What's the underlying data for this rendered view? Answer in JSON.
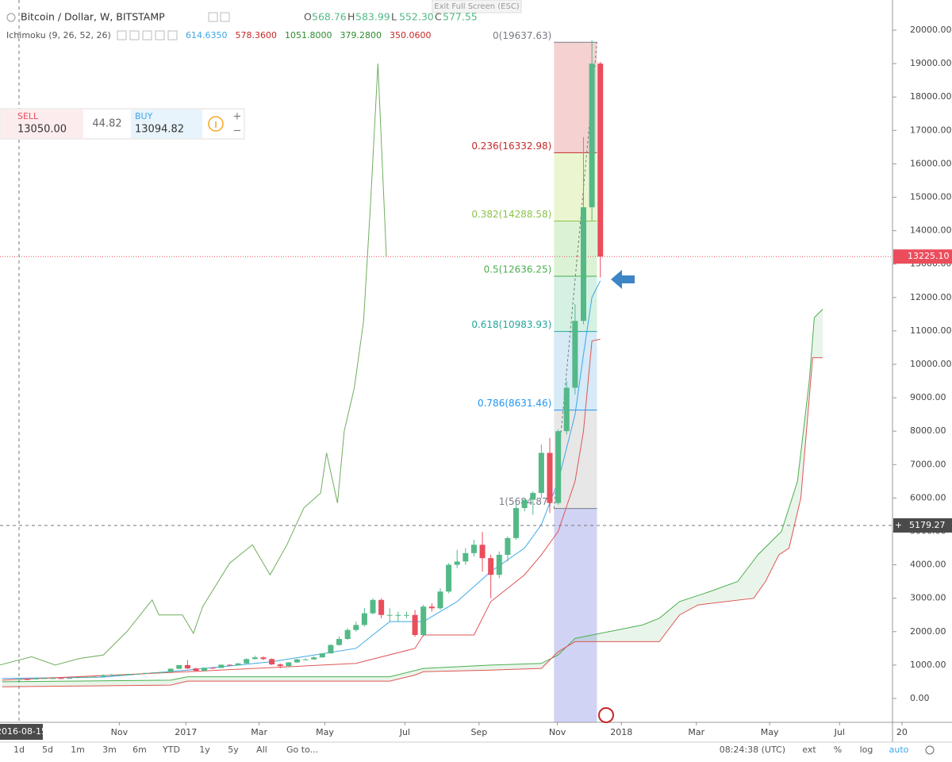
{
  "window": {
    "exit_fullscreen": "Exit Full Screen (ESC)"
  },
  "header": {
    "symbol": "Bitcoin / Dollar, W, BITSTAMP",
    "ohlc": [
      {
        "label": "O",
        "value": "568.76"
      },
      {
        "label": "H",
        "value": "583.99"
      },
      {
        "label": "L",
        "value": "552.30"
      },
      {
        "label": "C",
        "value": "577.55"
      }
    ],
    "indicator": "Ichimoku (9, 26, 52, 26)",
    "indicator_values": [
      {
        "value": "614.6350",
        "color": "#3ea6e6"
      },
      {
        "value": "578.3600",
        "color": "#c62828"
      },
      {
        "value": "1051.8000",
        "color": "#2e8b2e"
      },
      {
        "value": "379.2800",
        "color": "#2e8b2e"
      },
      {
        "value": "350.0600",
        "color": "#c62828"
      }
    ]
  },
  "trade_widget": {
    "sell_label": "SELL",
    "sell_price": "13050.00",
    "spread": "44.82",
    "buy_label": "BUY",
    "buy_price": "13094.82"
  },
  "toolbar": {
    "ranges": [
      "1d",
      "5d",
      "1m",
      "3m",
      "6m",
      "YTD",
      "1y",
      "5y",
      "All"
    ],
    "goto": "Go to...",
    "time": "08:24:38 (UTC)",
    "options": [
      "ext",
      "%",
      "log",
      "auto"
    ]
  },
  "chart_data": {
    "type": "candlestick",
    "xlim": [
      -2.26,
      103.68
    ],
    "ylim": [
      -713,
      20903
    ],
    "xticks": [
      {
        "value": 11.9,
        "label": "Nov"
      },
      {
        "value": 19.8,
        "label": "2017"
      },
      {
        "value": 28.5,
        "label": "Mar"
      },
      {
        "value": 36.3,
        "label": "May"
      },
      {
        "value": 45.8,
        "label": "Jul"
      },
      {
        "value": 54.6,
        "label": "Sep"
      },
      {
        "value": 63.9,
        "label": "Nov"
      },
      {
        "value": 71.5,
        "label": "2018"
      },
      {
        "value": 80.4,
        "label": "Mar"
      },
      {
        "value": 89.1,
        "label": "May"
      },
      {
        "value": 97.4,
        "label": "Jul"
      },
      {
        "value": 104.8,
        "label": "20"
      }
    ],
    "yticks": [
      {
        "value": 0,
        "label": "0.00"
      },
      {
        "value": 1000,
        "label": "1000.00"
      },
      {
        "value": 2000,
        "label": "2000.00"
      },
      {
        "value": 3000,
        "label": "3000.00"
      },
      {
        "value": 4000,
        "label": "4000.00"
      },
      {
        "value": 5000,
        "label": "5000.00"
      },
      {
        "value": 6000,
        "label": "6000.00"
      },
      {
        "value": 7000,
        "label": "7000.00"
      },
      {
        "value": 8000,
        "label": "8000.00"
      },
      {
        "value": 9000,
        "label": "9000.00"
      },
      {
        "value": 10000,
        "label": "10000.00"
      },
      {
        "value": 11000,
        "label": "11000.00"
      },
      {
        "value": 12000,
        "label": "12000.00"
      },
      {
        "value": 13000,
        "label": "13000.00"
      },
      {
        "value": 14000,
        "label": "14000.00"
      },
      {
        "value": 15000,
        "label": "15000.00"
      },
      {
        "value": 16000,
        "label": "16000.00"
      },
      {
        "value": 17000,
        "label": "17000.00"
      },
      {
        "value": 18000,
        "label": "18000.00"
      },
      {
        "value": 19000,
        "label": "19000.00"
      },
      {
        "value": 20000,
        "label": "20000.00"
      }
    ],
    "up_color": "#53b987",
    "down_color": "#eb4d5c",
    "candles": {
      "x": [
        0,
        1,
        2,
        3,
        4,
        5,
        6,
        7,
        8,
        9,
        10,
        11,
        12,
        13,
        14,
        15,
        16,
        17,
        18,
        19,
        20,
        21,
        22,
        23,
        24,
        25,
        26,
        27,
        28,
        29,
        30,
        31,
        32,
        33,
        34,
        35,
        36,
        37,
        38,
        39,
        40,
        41,
        42,
        43,
        44,
        45,
        46,
        47,
        48,
        49,
        50,
        51,
        52,
        53,
        54,
        55,
        56,
        57,
        58,
        59,
        60,
        61,
        62,
        63,
        64,
        65,
        66,
        67,
        68,
        69
      ],
      "open": [
        568.76,
        577.55,
        573,
        605,
        607,
        608,
        602,
        612,
        636,
        640,
        650,
        700,
        703,
        705,
        730,
        736,
        765,
        780,
        790,
        890,
        1000,
        900,
        830,
        920,
        915,
        1010,
        990,
        1050,
        1180,
        1230,
        1180,
        1020,
        970,
        1080,
        1170,
        1170,
        1230,
        1350,
        1600,
        1780,
        2050,
        2200,
        2550,
        2950,
        2500,
        2500,
        2500,
        2500,
        1900,
        2750,
        2700,
        3200,
        4000,
        4100,
        4350,
        4600,
        4200,
        3700,
        4300,
        4800,
        5700,
        5950,
        6150,
        7350,
        5850,
        8000,
        9300,
        11300,
        14700,
        19000
      ],
      "high": [
        583.99,
        590,
        610,
        620,
        615,
        612,
        620,
        640,
        645,
        660,
        720,
        740,
        720,
        740,
        745,
        770,
        785,
        800,
        900,
        1000,
        1150,
        920,
        930,
        930,
        1020,
        1020,
        1060,
        1200,
        1280,
        1260,
        1200,
        1050,
        1090,
        1190,
        1200,
        1260,
        1360,
        1620,
        1850,
        2100,
        2300,
        2700,
        3000,
        3000,
        2700,
        2600,
        2600,
        2650,
        2800,
        2850,
        3300,
        4050,
        4450,
        4500,
        4750,
        4980,
        4300,
        4400,
        4850,
        5850,
        5950,
        6200,
        7600,
        7800,
        8050,
        9500,
        11800,
        16800,
        19700,
        19050
      ],
      "low": [
        552.3,
        565,
        570,
        600,
        600,
        595,
        600,
        610,
        630,
        635,
        645,
        690,
        700,
        700,
        725,
        730,
        760,
        775,
        785,
        880,
        880,
        800,
        820,
        880,
        910,
        960,
        980,
        1040,
        1170,
        1150,
        1000,
        900,
        960,
        1070,
        1140,
        1160,
        1220,
        1340,
        1580,
        1760,
        2000,
        2150,
        2520,
        2400,
        2300,
        2300,
        2400,
        1850,
        1850,
        2600,
        2650,
        3150,
        3900,
        4000,
        4250,
        3800,
        3000,
        3600,
        4100,
        4750,
        5600,
        5500,
        6000,
        5550,
        5800,
        7900,
        9100,
        11200,
        14300,
        12600
      ],
      "close": [
        577.55,
        573,
        605,
        607,
        608,
        602,
        612,
        636,
        640,
        650,
        700,
        703,
        705,
        730,
        736,
        765,
        780,
        790,
        890,
        1000,
        900,
        830,
        920,
        915,
        1010,
        990,
        1050,
        1180,
        1230,
        1180,
        1020,
        970,
        1080,
        1170,
        1170,
        1230,
        1350,
        1600,
        1780,
        2050,
        2200,
        2550,
        2950,
        2500,
        2500,
        2500,
        2500,
        1900,
        2750,
        2700,
        3200,
        4000,
        4100,
        4350,
        4600,
        4200,
        3700,
        4300,
        4800,
        5700,
        5950,
        6150,
        7350,
        5850,
        8000,
        9300,
        11300,
        14700,
        19000,
        13225.1
      ]
    },
    "lines": [
      {
        "color": "#6fae5d",
        "x": [
          -2.3,
          1.5,
          4.3,
          7.2,
          10,
          12.8,
          15.8,
          16.6,
          19.4,
          20.7,
          21.8,
          25,
          27.7,
          29.8,
          31.8,
          33.8,
          35.8,
          36.5,
          37.8,
          38.6,
          39.8,
          40.9,
          41.7,
          42.6,
          43.6
        ],
        "values": [
          1000,
          1250,
          1000,
          1200,
          1300,
          2000,
          2950,
          2500,
          2500,
          1950,
          2750,
          4050,
          4600,
          3700,
          4600,
          5700,
          6150,
          7350,
          5850,
          8000,
          9300,
          11300,
          14700,
          19000,
          13225
        ]
      },
      {
        "color": "#3ea6e6",
        "x": [
          -2,
          10,
          20,
          30,
          40,
          44,
          48,
          52,
          56,
          60,
          62,
          64,
          66,
          67,
          68,
          69
        ],
        "values": [
          600,
          640,
          850,
          1100,
          1500,
          2300,
          2300,
          2900,
          3800,
          4500,
          5200,
          6500,
          8500,
          10300,
          12000,
          12500
        ]
      },
      {
        "color": "#e05555",
        "x": [
          -2,
          20,
          40,
          47,
          48,
          54,
          56,
          60,
          62,
          64,
          66,
          67,
          68,
          69
        ],
        "values": [
          550,
          800,
          1050,
          1500,
          1900,
          1900,
          2900,
          3700,
          4300,
          5000,
          6500,
          8000,
          10700,
          10750
        ]
      }
    ],
    "cloud": {
      "fill": "#4caf50",
      "span_a": {
        "color": "#4caf50",
        "x": [
          -2,
          18,
          20,
          44,
          48,
          56,
          62,
          64,
          66,
          69,
          74,
          76,
          78.4,
          82,
          85.3,
          87.7,
          90.5,
          92.4,
          93.8,
          94.4,
          95.4
        ],
        "values": [
          500,
          550,
          650,
          650,
          900,
          1000,
          1050,
          1300,
          1800,
          1950,
          2200,
          2400,
          2900,
          3200,
          3500,
          4300,
          5000,
          6500,
          9500,
          11400,
          11650
        ]
      },
      "span_b": {
        "color": "#e05555",
        "x": [
          -2,
          18,
          20,
          44,
          47,
          48,
          56,
          62,
          64,
          66,
          69,
          74,
          76,
          78.4,
          80.6,
          87.2,
          88.6,
          90.2,
          91.4,
          92.8,
          94.2,
          95.4
        ],
        "values": [
          350,
          400,
          520,
          520,
          700,
          800,
          850,
          900,
          1400,
          1700,
          1700,
          1700,
          1700,
          2500,
          2800,
          3000,
          3500,
          4300,
          4500,
          6000,
          10200,
          10200
        ]
      }
    },
    "fib": {
      "x_range": [
        63.5,
        68.6
      ],
      "levels": [
        19637.63,
        16332.98,
        14288.58,
        12636.25,
        10983.93,
        8631.46,
        5684.87
      ],
      "value_labels": [
        "0(19637.63)",
        "0.236(16332.98)",
        "0.382(14288.58)",
        "0.5(12636.25)",
        "0.618(10983.93)",
        "0.786(8631.46)",
        "1(5684.87)"
      ],
      "colors": [
        "#787b86",
        "#c62828",
        "#8bc34a",
        "#4caf50",
        "#26a69a",
        "#2196f3",
        "#787b86"
      ],
      "zone_colors": [
        "#f3c9c9",
        "#e8f5c8",
        "#d6f0cc",
        "#cdeede",
        "#cfe6f6",
        "#e3e3e3",
        "#c9cbf3"
      ]
    },
    "last_price": {
      "value": 13225.1,
      "label": "13225.10",
      "color": "#eb4d5c"
    },
    "crosshair": {
      "x": 0,
      "x_label": "2016-08-15",
      "y": 5179.27,
      "y_label": "5179.27"
    }
  }
}
